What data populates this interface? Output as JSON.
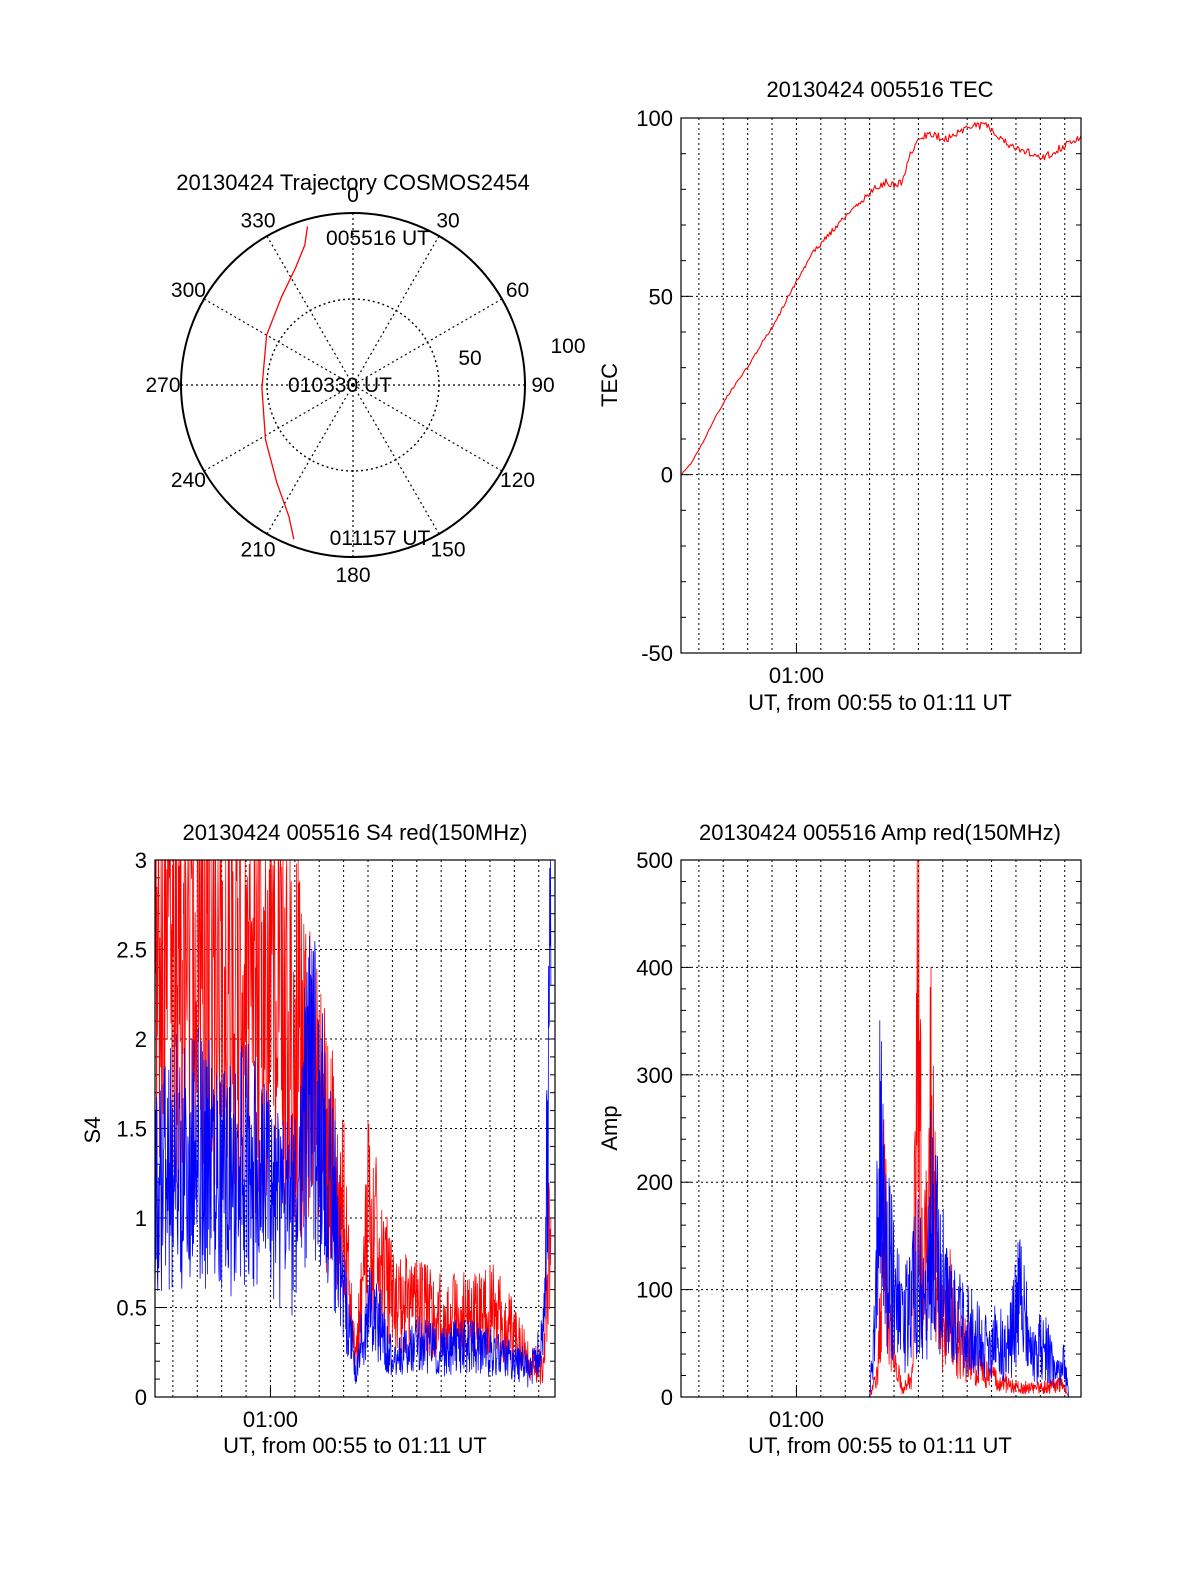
{
  "chart_data": [
    {
      "type": "polar",
      "title": "20130424 Trajectory COSMOS2454",
      "angle_labels": [
        "0",
        "30",
        "60",
        "90",
        "120",
        "150",
        "180",
        "210",
        "240",
        "270",
        "300",
        "330"
      ],
      "angles_deg": [
        0,
        30,
        60,
        90,
        120,
        150,
        180,
        210,
        240,
        270,
        300,
        330
      ],
      "radial_ticks": [
        "50",
        "100"
      ],
      "radial_values": [
        50,
        100
      ],
      "rlim": [
        0,
        100
      ],
      "trajectory": {
        "color": "#ff0000",
        "azimuth_deg": [
          344,
          341,
          334,
          321,
          300,
          268,
          238,
          218,
          206,
          201
        ],
        "radius": [
          96,
          86,
          76,
          66,
          58,
          53,
          60,
          72,
          85,
          96
        ]
      },
      "annotations": [
        "005516 UT",
        "010330 UT",
        "011157 UT"
      ]
    },
    {
      "type": "line",
      "title": "20130424 005516 TEC",
      "xlabel": "UT, from 00:55 to 01:11 UT",
      "ylabel": "TEC",
      "xlim": [
        "00:55:16",
        "01:11:40"
      ],
      "ylim": [
        -50,
        100
      ],
      "yticks": [
        "-50",
        "0",
        "50",
        "100"
      ],
      "yticks_values": [
        -50,
        0,
        50,
        100
      ],
      "xticks": [
        "01:00"
      ],
      "grid": true,
      "series": [
        {
          "color": "#ff0000",
          "x": [
            "00:55:16",
            "00:55:40",
            "00:56:10",
            "00:56:40",
            "00:57:10",
            "00:57:40",
            "00:58:10",
            "00:58:40",
            "00:59:10",
            "00:59:40",
            "01:00:10",
            "01:00:40",
            "01:01:10",
            "01:01:40",
            "01:02:10",
            "01:02:40",
            "01:03:10",
            "01:03:40",
            "01:04:00",
            "01:04:20",
            "01:04:40",
            "01:05:10",
            "01:05:40",
            "01:06:10",
            "01:06:40",
            "01:07:10",
            "01:07:40",
            "01:08:10",
            "01:08:40",
            "01:09:10",
            "01:09:40",
            "01:10:10",
            "01:10:40",
            "01:11:10",
            "01:11:40"
          ],
          "y": [
            0,
            3,
            9,
            16,
            22,
            27,
            32,
            38,
            43,
            50,
            56,
            62,
            66,
            70,
            73,
            77,
            80,
            82,
            81,
            82,
            90,
            95,
            95,
            94,
            96,
            98,
            98,
            96,
            93,
            91,
            90,
            89,
            91,
            93,
            95
          ]
        }
      ]
    },
    {
      "type": "line",
      "title": "20130424 005516 S4 red(150MHz)",
      "xlabel": "UT, from 00:55 to 01:11 UT",
      "ylabel": "S4",
      "xlim": [
        "00:55:16",
        "01:11:40"
      ],
      "ylim": [
        0,
        3
      ],
      "yticks": [
        "0",
        "0.5",
        "1",
        "1.5",
        "2",
        "2.5",
        "3"
      ],
      "yticks_values": [
        0,
        0.5,
        1,
        1.5,
        2,
        2.5,
        3
      ],
      "xticks": [
        "01:00"
      ],
      "grid": true,
      "series": [
        {
          "color": "#ff0000",
          "x": [
            "00:55:16",
            "00:56:00",
            "00:57:00",
            "00:58:00",
            "00:59:00",
            "01:00:00",
            "01:01:00",
            "01:02:00",
            "01:02:30",
            "01:03:00",
            "01:03:30",
            "01:04:00",
            "01:04:30",
            "01:05:00",
            "01:06:00",
            "01:07:00",
            "01:08:00",
            "01:09:00",
            "01:10:00",
            "01:10:40",
            "01:11:10",
            "01:11:30"
          ],
          "y": [
            2.4,
            2.6,
            2.5,
            2.4,
            2.3,
            2.2,
            2.1,
            1.6,
            1.3,
            1.1,
            0.2,
            1.0,
            0.8,
            0.55,
            0.5,
            0.45,
            0.45,
            0.5,
            0.35,
            0.2,
            0.15,
            1.0
          ]
        },
        {
          "color": "#0000ff",
          "x": [
            "00:55:16",
            "00:56:00",
            "00:57:00",
            "00:58:00",
            "00:59:00",
            "01:00:00",
            "01:01:00",
            "01:01:40",
            "01:02:10",
            "01:02:40",
            "01:03:00",
            "01:03:30",
            "01:04:00",
            "01:04:30",
            "01:05:00",
            "01:06:00",
            "01:07:00",
            "01:08:00",
            "01:09:00",
            "01:10:00",
            "01:10:40",
            "01:11:10",
            "01:11:30"
          ],
          "y": [
            1.2,
            1.3,
            1.4,
            1.2,
            1.3,
            1.1,
            1.0,
            1.8,
            1.4,
            1.0,
            0.6,
            0.15,
            0.5,
            0.4,
            0.2,
            0.3,
            0.25,
            0.3,
            0.25,
            0.2,
            0.15,
            0.3,
            2.3
          ]
        }
      ]
    },
    {
      "type": "line",
      "title": "20130424 005516 Amp red(150MHz)",
      "xlabel": "UT, from 00:55 to 01:11 UT",
      "ylabel": "Amp",
      "xlim": [
        "00:55:16",
        "01:11:40"
      ],
      "ylim": [
        0,
        500
      ],
      "yticks": [
        "0",
        "100",
        "200",
        "300",
        "400",
        "500"
      ],
      "yticks_values": [
        0,
        100,
        200,
        300,
        400,
        500
      ],
      "xticks": [
        "01:00"
      ],
      "grid": true,
      "series": [
        {
          "color": "#ff0000",
          "x": [
            "00:55:16",
            "01:03:00",
            "01:03:20",
            "01:03:35",
            "01:03:50",
            "01:04:20",
            "01:04:45",
            "01:05:00",
            "01:05:10",
            "01:05:20",
            "01:05:30",
            "01:05:45",
            "01:06:00",
            "01:06:20",
            "01:06:40",
            "01:07:10",
            "01:07:40",
            "01:08:20",
            "01:09:00",
            "01:09:40",
            "01:10:20",
            "01:10:50",
            "01:11:10"
          ],
          "y": [
            0,
            0,
            20,
            170,
            60,
            5,
            20,
            430,
            80,
            150,
            295,
            120,
            60,
            90,
            50,
            40,
            25,
            15,
            10,
            8,
            10,
            12,
            0
          ]
        },
        {
          "color": "#0000ff",
          "x": [
            "00:55:16",
            "01:03:00",
            "01:03:15",
            "01:03:25",
            "01:03:40",
            "01:04:00",
            "01:04:20",
            "01:04:40",
            "01:05:00",
            "01:05:20",
            "01:05:35",
            "01:05:50",
            "01:06:10",
            "01:06:40",
            "01:07:10",
            "01:07:40",
            "01:08:10",
            "01:08:40",
            "01:09:10",
            "01:09:40",
            "01:10:10",
            "01:10:40",
            "01:11:00",
            "01:11:10"
          ],
          "y": [
            0,
            0,
            100,
            240,
            130,
            110,
            60,
            90,
            110,
            70,
            205,
            120,
            90,
            70,
            60,
            50,
            55,
            45,
            95,
            40,
            50,
            20,
            30,
            0
          ]
        }
      ]
    }
  ]
}
